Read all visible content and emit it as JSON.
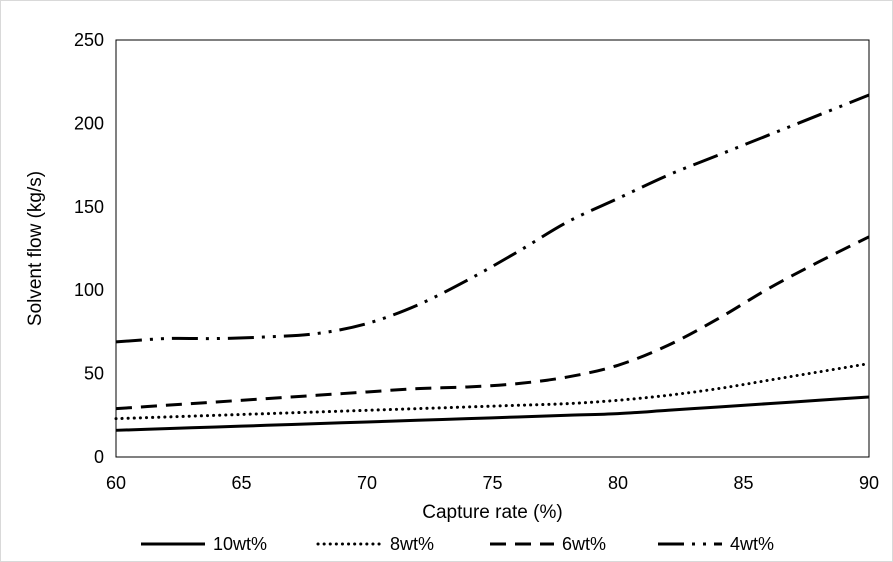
{
  "chart_data": {
    "type": "line",
    "title": "",
    "xlabel": "Capture rate (%)",
    "ylabel": "Solvent flow (kg/s)",
    "xlim": [
      60,
      90
    ],
    "ylim": [
      0,
      250
    ],
    "x_ticks": [
      60,
      65,
      70,
      75,
      80,
      85,
      90
    ],
    "y_ticks": [
      0,
      50,
      100,
      150,
      200,
      250
    ],
    "grid": false,
    "legend_position": "bottom",
    "x": [
      60,
      62,
      64,
      66,
      68,
      70,
      72,
      74,
      76,
      78,
      80,
      82,
      84,
      86,
      88,
      90
    ],
    "series": [
      {
        "name": "10wt%",
        "style": "solid",
        "values": [
          16,
          17,
          18,
          19,
          20,
          21,
          22,
          23,
          24,
          25,
          26,
          28,
          30,
          32,
          34,
          36
        ]
      },
      {
        "name": "8wt%",
        "style": "dotted",
        "values": [
          23,
          24,
          25,
          26,
          27,
          28,
          29,
          30,
          31,
          32,
          34,
          37,
          41,
          46,
          51,
          56
        ]
      },
      {
        "name": "6wt%",
        "style": "dashed",
        "values": [
          29,
          31,
          33,
          35,
          37,
          39,
          41,
          42,
          44,
          48,
          55,
          67,
          83,
          101,
          117,
          132
        ]
      },
      {
        "name": "4wt%",
        "style": "dash-dot-dot",
        "values": [
          69,
          71,
          71,
          72,
          74,
          80,
          91,
          106,
          123,
          141,
          155,
          169,
          181,
          193,
          205,
          217
        ]
      }
    ],
    "colors": {
      "line": "#000000",
      "axis": "#000000",
      "frame": "#d9d9d9"
    }
  }
}
